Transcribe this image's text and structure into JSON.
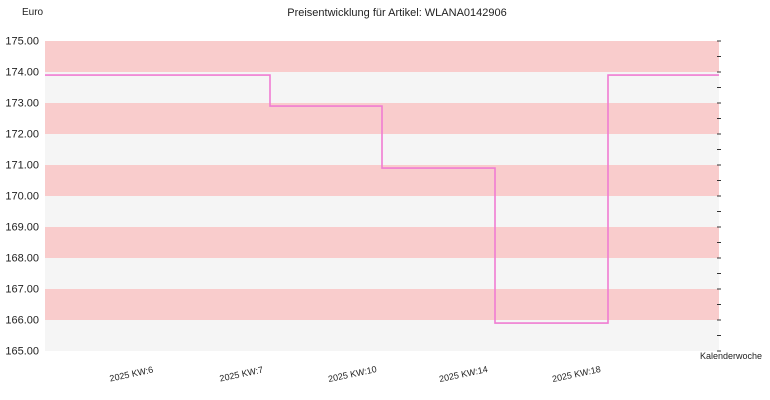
{
  "chart_data": {
    "type": "line",
    "title": "Preisentwicklung für Artikel: WLANA0142906",
    "ylabel": "Euro",
    "xlabel": "Kalenderwoche",
    "categories": [
      "2025 KW:6",
      "2025 KW:7",
      "2025 KW:10",
      "2025 KW:14",
      "2025 KW:18"
    ],
    "series": [
      {
        "values": [
          173.9,
          172.9,
          170.9,
          165.9,
          173.9
        ]
      }
    ],
    "step": true,
    "ylim": [
      165,
      175
    ],
    "yticks": [
      "165.00",
      "166.00",
      "167.00",
      "168.00",
      "169.00",
      "170.00",
      "171.00",
      "172.00",
      "173.00",
      "174.00",
      "175.00"
    ],
    "grid": "horizontal bands",
    "colors": {
      "line": "#f07cd2",
      "band_a": "#f9cccc",
      "band_b": "#f5f5f5"
    }
  }
}
